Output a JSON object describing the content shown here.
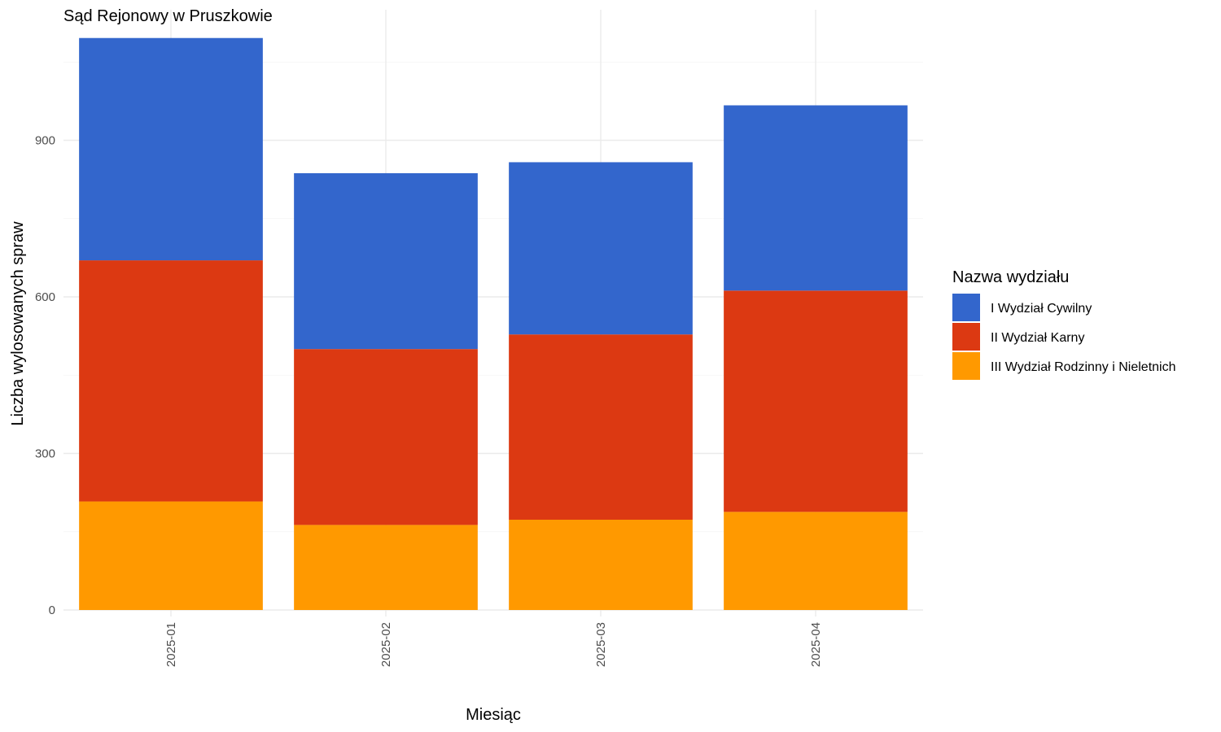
{
  "chart_data": {
    "type": "bar",
    "stacked": true,
    "title": "Sąd Rejonowy w Pruszkowie",
    "xlabel": "Miesiąc",
    "ylabel": "Liczba wylosowanych spraw",
    "categories": [
      "2025-01",
      "2025-02",
      "2025-03",
      "2025-04"
    ],
    "ylim": [
      0,
      1100
    ],
    "y_ticks": [
      0,
      300,
      600,
      900
    ],
    "grid": true,
    "legend": {
      "title": "Nazwa wydziału",
      "placement": "right"
    },
    "series": [
      {
        "name": "III Wydział Rodzinny i Nieletnich",
        "color": "#FF9900",
        "values": [
          208,
          163,
          173,
          188
        ]
      },
      {
        "name": "II Wydział Karny",
        "color": "#DC3912",
        "values": [
          462,
          337,
          355,
          424
        ]
      },
      {
        "name": "I Wydział Cywilny",
        "color": "#3366CC",
        "values": [
          426,
          337,
          330,
          355
        ]
      }
    ],
    "legend_order": [
      "I Wydział Cywilny",
      "II Wydział Karny",
      "III Wydział Rodzinny i Nieletnich"
    ]
  }
}
